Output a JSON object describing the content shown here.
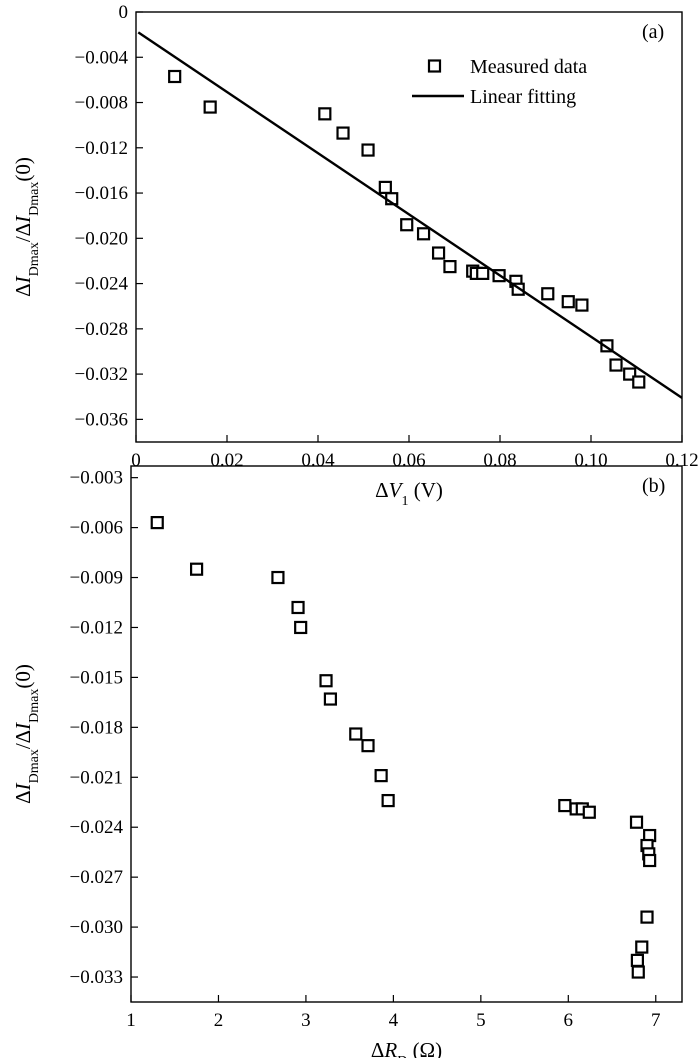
{
  "chart_data": [
    {
      "panel": "(a)",
      "type": "scatter",
      "xlabel": "ΔV1 (V)",
      "ylabel": "ΔIDmax/ΔIDmax(0)",
      "xlim": [
        0,
        0.12
      ],
      "ylim": [
        -0.038,
        0.0
      ],
      "xticks": [
        0,
        0.02,
        0.04,
        0.06,
        0.08,
        0.1,
        0.12
      ],
      "xtick_labels": [
        "0",
        "0.02",
        "0.04",
        "0.06",
        "0.08",
        "0.10",
        "0.12"
      ],
      "yticks": [
        0,
        -0.004,
        -0.008,
        -0.012,
        -0.016,
        -0.02,
        -0.024,
        -0.028,
        -0.032,
        -0.036
      ],
      "ytick_labels": [
        "0",
        "−0.004",
        "−0.008",
        "−0.012",
        "−0.016",
        "−0.020",
        "−0.024",
        "−0.028",
        "−0.032",
        "−0.036"
      ],
      "legend_position": "top-right",
      "series": [
        {
          "name": "Measured data",
          "marker": "open-square",
          "points": [
            [
              0.0085,
              -0.0057
            ],
            [
              0.0163,
              -0.0084
            ],
            [
              0.0415,
              -0.009
            ],
            [
              0.0455,
              -0.0107
            ],
            [
              0.051,
              -0.0122
            ],
            [
              0.0548,
              -0.0155
            ],
            [
              0.0562,
              -0.0165
            ],
            [
              0.0595,
              -0.0188
            ],
            [
              0.0632,
              -0.0196
            ],
            [
              0.0665,
              -0.0213
            ],
            [
              0.069,
              -0.0225
            ],
            [
              0.074,
              -0.0229
            ],
            [
              0.0748,
              -0.0231
            ],
            [
              0.0762,
              -0.0231
            ],
            [
              0.0798,
              -0.0233
            ],
            [
              0.0835,
              -0.0238
            ],
            [
              0.084,
              -0.0245
            ],
            [
              0.0905,
              -0.0249
            ],
            [
              0.095,
              -0.0256
            ],
            [
              0.098,
              -0.0259
            ],
            [
              0.1035,
              -0.0295
            ],
            [
              0.1055,
              -0.0312
            ],
            [
              0.1085,
              -0.032
            ],
            [
              0.1105,
              -0.0327
            ]
          ]
        },
        {
          "name": "Linear fitting",
          "style": "solid-line",
          "points": [
            [
              0.0005,
              -0.0018
            ],
            [
              0.12,
              -0.0341
            ]
          ]
        }
      ],
      "annotation": "(a)"
    },
    {
      "panel": "(b)",
      "type": "scatter",
      "xlabel": "ΔRD (Ω)",
      "ylabel": "ΔIDmax/ΔIDmax(0)",
      "xlim": [
        1,
        7.3
      ],
      "ylim": [
        -0.0345,
        -0.0023
      ],
      "xticks": [
        1,
        2,
        3,
        4,
        5,
        6,
        7
      ],
      "xtick_labels": [
        "1",
        "2",
        "3",
        "4",
        "5",
        "6",
        "7"
      ],
      "yticks": [
        -0.003,
        -0.006,
        -0.009,
        -0.012,
        -0.015,
        -0.018,
        -0.021,
        -0.024,
        -0.027,
        -0.03,
        -0.033
      ],
      "ytick_labels": [
        "−0.003",
        "−0.006",
        "−0.009",
        "−0.012",
        "−0.015",
        "−0.018",
        "−0.021",
        "−0.024",
        "−0.027",
        "−0.030",
        "−0.033"
      ],
      "series": [
        {
          "marker": "open-square",
          "points": [
            [
              1.3,
              -0.0057
            ],
            [
              1.75,
              -0.0085
            ],
            [
              2.68,
              -0.009
            ],
            [
              2.91,
              -0.0108
            ],
            [
              2.94,
              -0.012
            ],
            [
              3.23,
              -0.0152
            ],
            [
              3.28,
              -0.0163
            ],
            [
              3.57,
              -0.0184
            ],
            [
              3.71,
              -0.0191
            ],
            [
              3.86,
              -0.0209
            ],
            [
              3.94,
              -0.0224
            ],
            [
              5.96,
              -0.0227
            ],
            [
              6.09,
              -0.0229
            ],
            [
              6.16,
              -0.0229
            ],
            [
              6.24,
              -0.0231
            ],
            [
              6.78,
              -0.0237
            ],
            [
              6.93,
              -0.0245
            ],
            [
              6.9,
              -0.0251
            ],
            [
              6.92,
              -0.0256
            ],
            [
              6.93,
              -0.026
            ],
            [
              6.9,
              -0.0294
            ],
            [
              6.84,
              -0.0312
            ],
            [
              6.79,
              -0.032
            ],
            [
              6.8,
              -0.0327
            ]
          ]
        }
      ],
      "annotation": "(b)"
    }
  ]
}
